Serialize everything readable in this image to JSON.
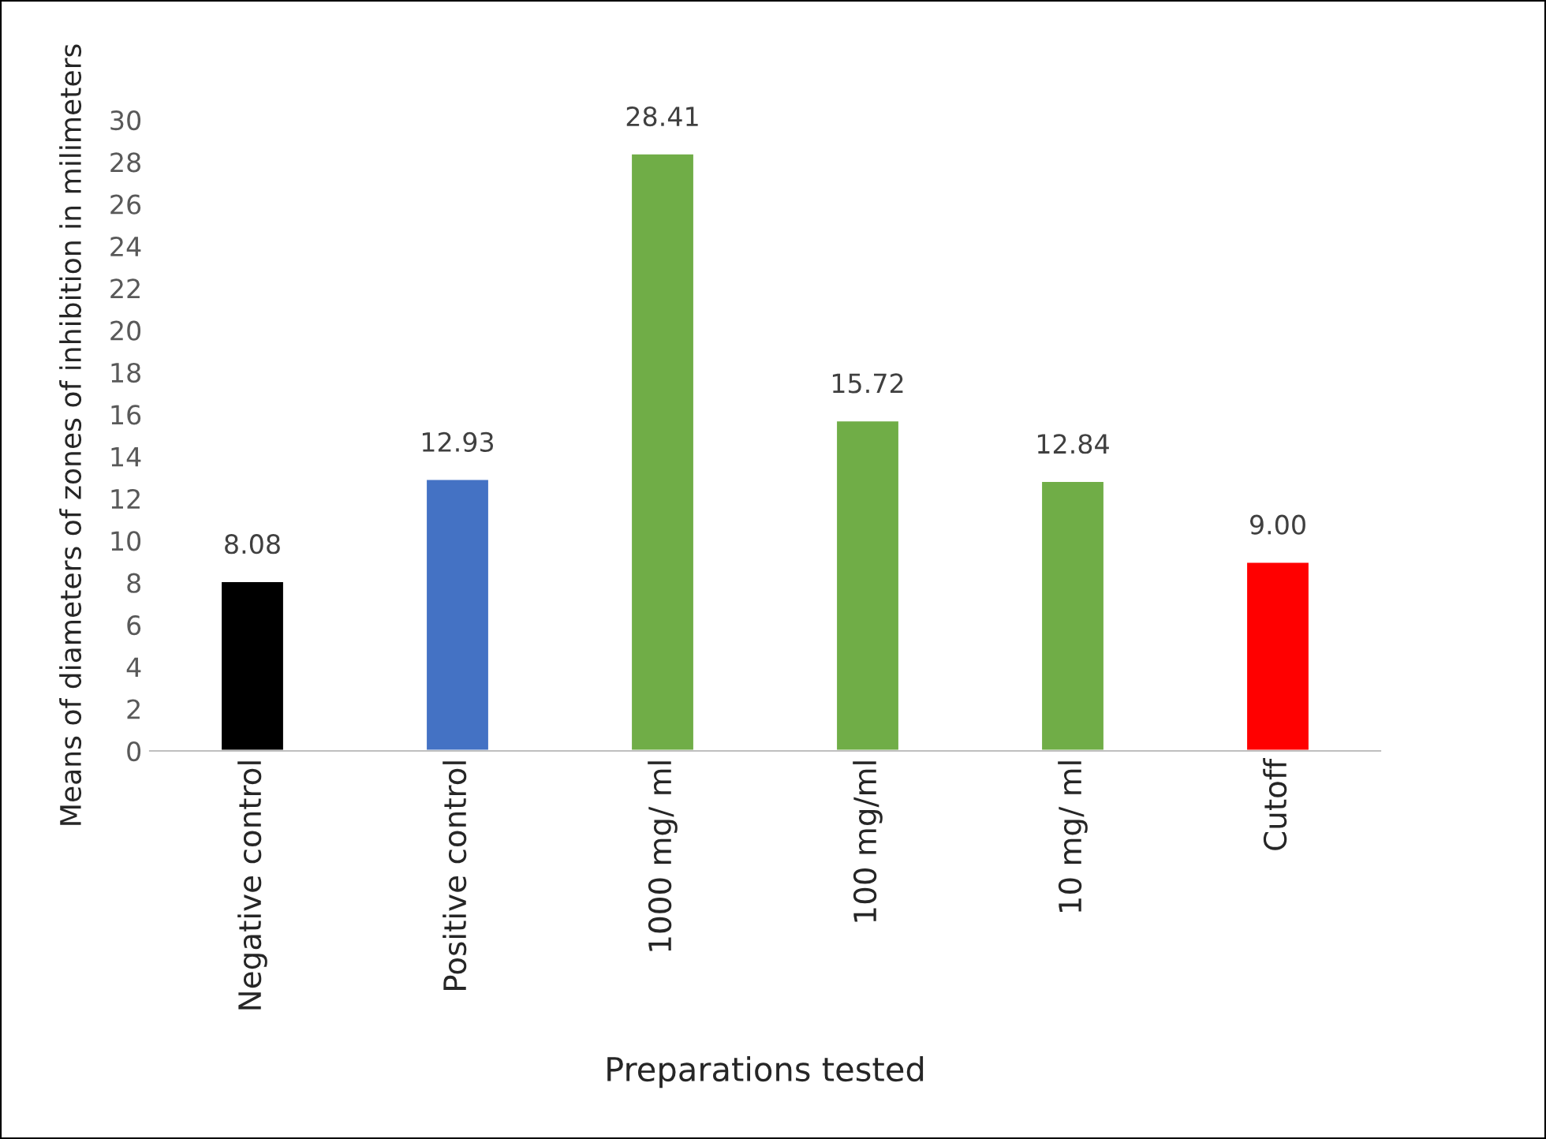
{
  "chart_data": {
    "type": "bar",
    "categories": [
      "Negative control",
      "Positive control",
      "1000 mg/ ml",
      "100 mg/ml",
      "10 mg/ ml",
      "Cutoff"
    ],
    "values": [
      8.08,
      12.93,
      28.41,
      15.72,
      12.84,
      9.0
    ],
    "colors": [
      "#000000",
      "#4472c4",
      "#70ad47",
      "#70ad47",
      "#70ad47",
      "#ff0000"
    ],
    "value_labels": [
      "8.08",
      "12.93",
      "28.41",
      "15.72",
      "12.84",
      "9.00"
    ],
    "xlabel": "Preparations tested",
    "ylabel": "Means of diameters of zones of inhibition in milimeters",
    "ylim": [
      0,
      30
    ],
    "yticks": [
      0,
      2,
      4,
      6,
      8,
      10,
      12,
      14,
      16,
      18,
      20,
      22,
      24,
      26,
      28,
      30
    ],
    "grid": false,
    "legend": false
  }
}
